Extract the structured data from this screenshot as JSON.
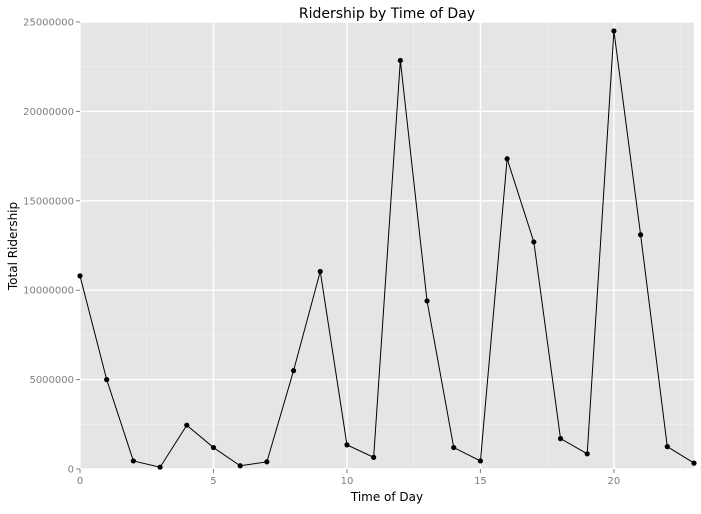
{
  "chart_data": {
    "type": "line",
    "title": "Ridership by Time of Day",
    "xlabel": "Time of Day",
    "ylabel": "Total Ridership",
    "xlim": [
      0,
      23
    ],
    "ylim": [
      0,
      25000000
    ],
    "x_ticks": [
      "0",
      "5",
      "10",
      "15",
      "20"
    ],
    "x_tick_values": [
      0,
      5,
      10,
      15,
      20
    ],
    "y_ticks": [
      "0",
      "5000000",
      "10000000",
      "15000000",
      "20000000",
      "25000000"
    ],
    "y_tick_values": [
      0,
      5000000,
      10000000,
      15000000,
      20000000,
      25000000
    ],
    "grid": true,
    "legend": "none",
    "colors": {
      "panel_background": "#e5e5e5",
      "grid_major": "#ffffff",
      "grid_minor": "#f0f0f0",
      "series": "#000000",
      "tick_label": "#7f7f7f"
    },
    "x": [
      0,
      1,
      2,
      3,
      4,
      5,
      6,
      7,
      8,
      9,
      10,
      11,
      12,
      13,
      14,
      15,
      16,
      17,
      18,
      19,
      20,
      21,
      22,
      23
    ],
    "series": [
      {
        "values": [
          10800000,
          5000000,
          450000,
          100000,
          2450000,
          1200000,
          180000,
          400000,
          5500000,
          11050000,
          1350000,
          650000,
          22850000,
          9400000,
          1200000,
          450000,
          17350000,
          12700000,
          1700000,
          850000,
          24500000,
          13100000,
          1250000,
          330000
        ]
      }
    ]
  }
}
